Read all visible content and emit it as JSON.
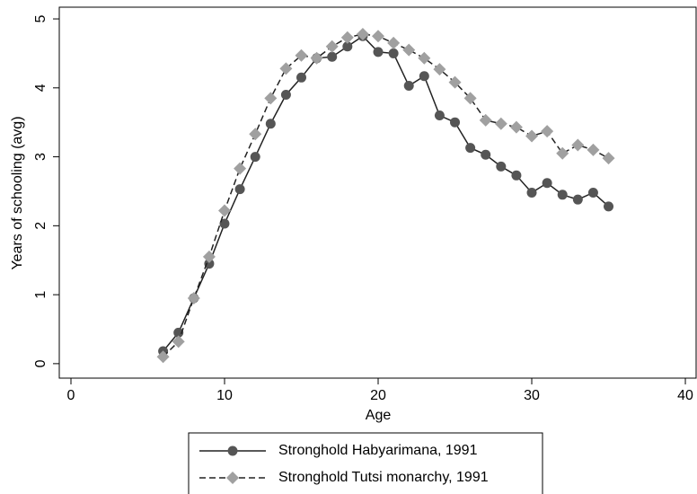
{
  "chart_data": {
    "type": "line",
    "x_label": "Age",
    "y_label": "Years of schooling (avg)",
    "x": [
      6,
      7,
      8,
      9,
      10,
      11,
      12,
      13,
      14,
      15,
      16,
      17,
      18,
      19,
      20,
      21,
      22,
      23,
      24,
      25,
      26,
      27,
      28,
      29,
      30,
      31,
      32,
      33,
      34,
      35
    ],
    "series": [
      {
        "name": "Stronghold Habyarimana, 1991",
        "color": "#555555",
        "marker": "circle",
        "dash": "solid",
        "values": [
          0.18,
          0.45,
          0.95,
          1.45,
          2.03,
          2.53,
          3.0,
          3.48,
          3.9,
          4.15,
          4.43,
          4.45,
          4.6,
          4.75,
          4.52,
          4.5,
          4.03,
          4.17,
          3.6,
          3.5,
          3.13,
          3.03,
          2.86,
          2.73,
          2.48,
          2.62,
          2.45,
          2.38,
          2.48,
          2.28
        ]
      },
      {
        "name": "Stronghold Tutsi monarchy, 1991",
        "color": "#a0a0a0",
        "marker": "diamond",
        "dash": "dashed",
        "values": [
          0.1,
          0.32,
          0.95,
          1.55,
          2.22,
          2.83,
          3.33,
          3.85,
          4.28,
          4.47,
          4.43,
          4.6,
          4.73,
          4.78,
          4.75,
          4.65,
          4.55,
          4.43,
          4.27,
          4.08,
          3.85,
          3.53,
          3.48,
          3.43,
          3.3,
          3.37,
          3.05,
          3.17,
          3.1,
          2.98
        ]
      }
    ],
    "xlim": [
      -0.76,
      40.7
    ],
    "ylim": [
      -0.21,
      5.17
    ],
    "xticks": [
      0,
      10,
      20,
      30,
      40
    ],
    "yticks": [
      0,
      1,
      2,
      3,
      4,
      5
    ]
  }
}
